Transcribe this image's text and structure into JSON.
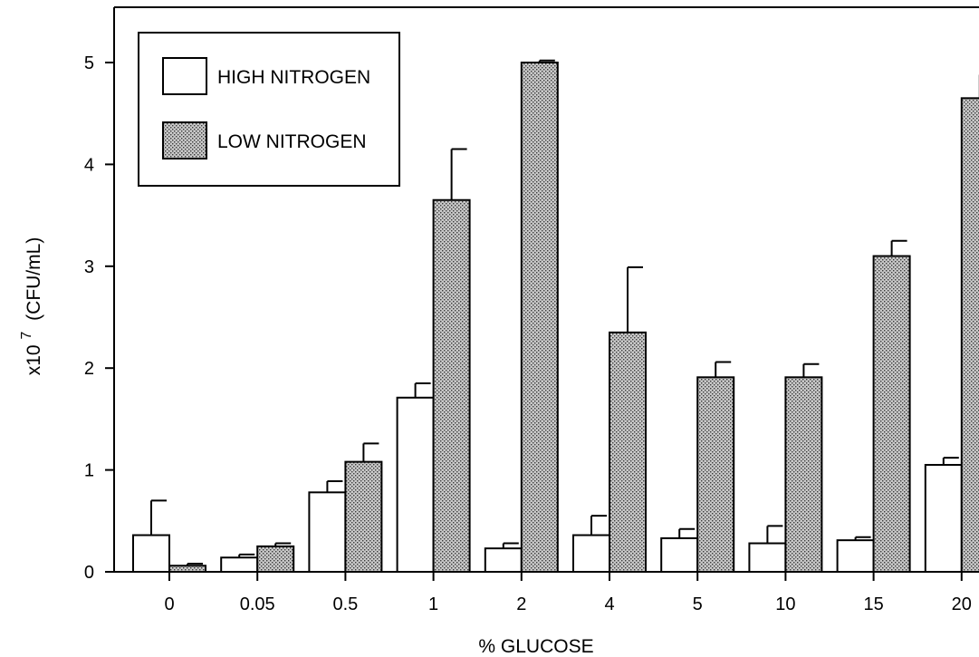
{
  "chart_data": {
    "type": "bar",
    "title": "",
    "xlabel": "% GLUCOSE",
    "ylabel_base": "x10",
    "ylabel_exp": "7",
    "ylabel_unit": "(CFU/mL)",
    "ylim": [
      0,
      5.5
    ],
    "yticks": [
      "0",
      "1",
      "2",
      "3",
      "4",
      "5"
    ],
    "ytick_values": [
      0,
      1,
      2,
      3,
      4,
      5
    ],
    "categories": [
      "0",
      "0.05",
      "0.5",
      "1",
      "2",
      "4",
      "5",
      "10",
      "15",
      "20"
    ],
    "grid": false,
    "legend_position": "top-left",
    "series": [
      {
        "name": "HIGH NITROGEN",
        "fill": "white",
        "values": [
          0.36,
          0.14,
          0.78,
          1.71,
          0.23,
          0.36,
          0.33,
          0.28,
          0.31,
          1.05
        ],
        "errors": [
          0.34,
          0.03,
          0.11,
          0.14,
          0.05,
          0.19,
          0.09,
          0.17,
          0.03,
          0.07
        ]
      },
      {
        "name": "LOW NITROGEN",
        "fill": "stippled",
        "values": [
          0.06,
          0.25,
          1.08,
          3.65,
          5.0,
          2.35,
          1.91,
          1.91,
          3.1,
          4.65
        ],
        "errors": [
          0.02,
          0.03,
          0.18,
          0.5,
          0.02,
          0.64,
          0.15,
          0.13,
          0.15,
          0.23
        ]
      }
    ],
    "colors": {
      "stroke": "#000000",
      "high_fill": "#ffffff",
      "low_fill_bg": "#c8c8c8",
      "low_fill_dot": "#3a3a3a"
    }
  }
}
